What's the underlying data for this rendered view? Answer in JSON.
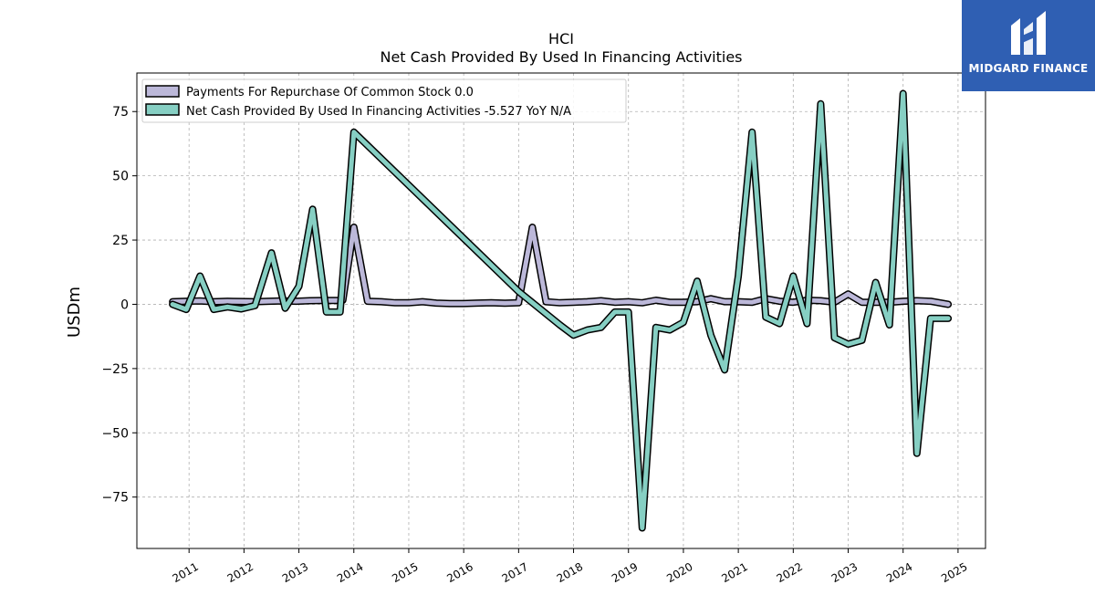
{
  "brand": {
    "name": "MIDGARD FINANCE",
    "bg": "#2f5fb3"
  },
  "chart_data": {
    "type": "line",
    "title": "HCI",
    "subtitle": "Net Cash Provided By Used In Financing Activities",
    "ylabel": "USDm",
    "xlabel": "",
    "ylim": [
      -95,
      90
    ],
    "xlim": [
      2010.05,
      2025.5
    ],
    "yticks": [
      -75,
      -50,
      -25,
      0,
      25,
      50,
      75
    ],
    "yticklabels": [
      "−75",
      "−50",
      "−25",
      "0",
      "25",
      "50",
      "75"
    ],
    "xticks": [
      2011,
      2012,
      2013,
      2014,
      2015,
      2016,
      2017,
      2018,
      2019,
      2020,
      2021,
      2022,
      2023,
      2024,
      2025
    ],
    "xticklabels": [
      "2011",
      "2012",
      "2013",
      "2014",
      "2015",
      "2016",
      "2017",
      "2018",
      "2019",
      "2020",
      "2021",
      "2022",
      "2023",
      "2024",
      "2025"
    ],
    "grid": true,
    "legend_position": "top-left",
    "series": [
      {
        "name": "Payments For Repurchase Of Common Stock",
        "legend_label": "Payments For Repurchase Of Common Stock  0.0",
        "color": "#bcb8d9",
        "x": [
          2010.7,
          2010.95,
          2011.2,
          2011.45,
          2011.7,
          2011.95,
          2012.2,
          2012.45,
          2012.7,
          2012.95,
          2013.2,
          2013.45,
          2013.7,
          2013.8,
          2014.0,
          2014.25,
          2014.5,
          2014.75,
          2015.0,
          2015.25,
          2015.5,
          2015.75,
          2016.0,
          2016.25,
          2016.5,
          2016.75,
          2017.0,
          2017.25,
          2017.5,
          2017.75,
          2018.0,
          2018.25,
          2018.5,
          2018.75,
          2019.0,
          2019.25,
          2019.5,
          2019.75,
          2020.0,
          2020.25,
          2020.5,
          2020.75,
          2021.0,
          2021.25,
          2021.5,
          2021.75,
          2022.0,
          2022.25,
          2022.5,
          2022.75,
          2023.0,
          2023.25,
          2023.5,
          2023.75,
          2024.0,
          2024.25,
          2024.5,
          2024.82
        ],
        "values": [
          1.0,
          1.2,
          1.3,
          1.0,
          1.2,
          1.1,
          1.0,
          1.2,
          1.3,
          1.2,
          1.4,
          1.5,
          1.5,
          1.6,
          30.0,
          1.2,
          1.0,
          0.6,
          0.6,
          1.0,
          0.5,
          0.3,
          0.3,
          0.5,
          0.6,
          0.4,
          0.6,
          30.0,
          1.0,
          0.6,
          0.8,
          1.0,
          1.4,
          0.8,
          1.0,
          0.6,
          1.6,
          0.8,
          0.8,
          1.0,
          2.2,
          1.0,
          1.0,
          0.8,
          2.2,
          1.2,
          0.8,
          1.6,
          1.4,
          0.8,
          4.0,
          0.8,
          0.8,
          0.8,
          1.2,
          1.4,
          1.2,
          0.0
        ]
      },
      {
        "name": "Net Cash Provided By Used In Financing Activities",
        "legend_label": "Net Cash Provided By Used In Financing Activities  -5.527 YoY N/A",
        "color": "#86cfc3",
        "x": [
          2010.7,
          2010.95,
          2011.2,
          2011.45,
          2011.7,
          2011.95,
          2012.2,
          2012.5,
          2012.75,
          2013.0,
          2013.25,
          2013.5,
          2013.75,
          2014.0,
          2017.0,
          2017.75,
          2018.0,
          2018.25,
          2018.5,
          2018.75,
          2019.0,
          2019.25,
          2019.5,
          2019.75,
          2020.0,
          2020.25,
          2020.5,
          2020.75,
          2021.0,
          2021.25,
          2021.5,
          2021.75,
          2022.0,
          2022.25,
          2022.5,
          2022.75,
          2023.0,
          2023.25,
          2023.5,
          2023.75,
          2024.0,
          2024.25,
          2024.5,
          2024.82
        ],
        "values": [
          0.0,
          -2.0,
          11.0,
          -2.0,
          -1.0,
          -1.8,
          -0.5,
          20.0,
          -1.5,
          7.0,
          37.0,
          -3.0,
          -3.0,
          67.0,
          5.0,
          -8.0,
          -12.0,
          -10.0,
          -9.0,
          -3.0,
          -3.0,
          -87.0,
          -9.0,
          -10.0,
          -7.0,
          9.0,
          -12.0,
          -25.5,
          11.0,
          67.0,
          -5.0,
          -7.5,
          11.0,
          -7.5,
          78.0,
          -13.0,
          -15.5,
          -14.0,
          8.5,
          -8.0,
          82.0,
          -58.0,
          -5.5,
          -5.5
        ]
      }
    ]
  }
}
